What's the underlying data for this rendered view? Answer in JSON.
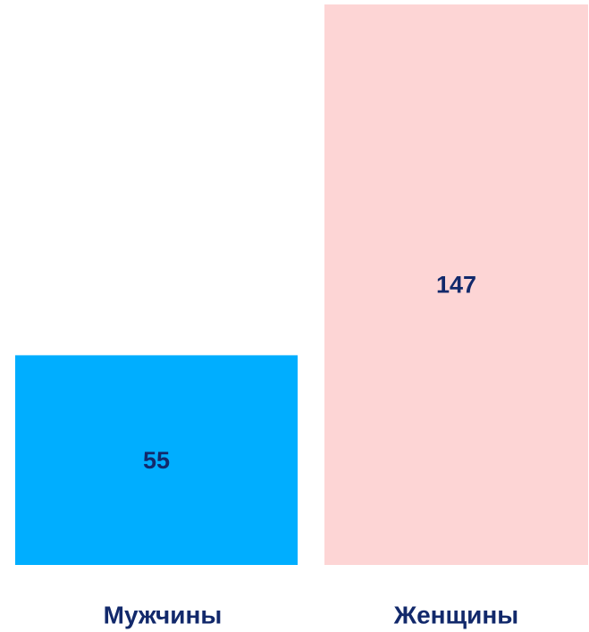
{
  "chart_data": {
    "type": "bar",
    "categories": [
      "Мужчины",
      "Женщины"
    ],
    "values": [
      55,
      147
    ],
    "colors": [
      "#00aeff",
      "#fdd5d5"
    ]
  }
}
